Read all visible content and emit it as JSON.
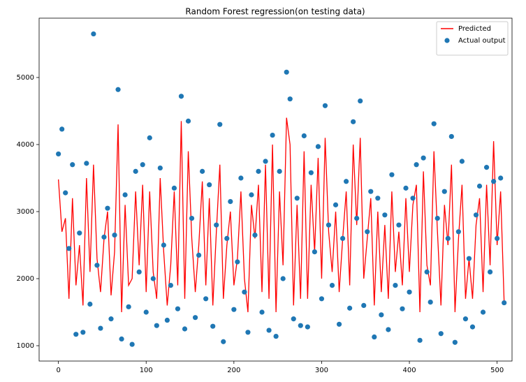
{
  "chart_data": {
    "type": "line",
    "title": "Random Forest regression(on testing data)",
    "x": [
      0,
      4,
      8,
      12,
      16,
      20,
      24,
      28,
      32,
      36,
      40,
      44,
      48,
      52,
      56,
      60,
      64,
      68,
      72,
      76,
      80,
      84,
      88,
      92,
      96,
      100,
      104,
      108,
      112,
      116,
      120,
      124,
      128,
      132,
      136,
      140,
      144,
      148,
      152,
      156,
      160,
      164,
      168,
      172,
      176,
      180,
      184,
      188,
      192,
      196,
      200,
      204,
      208,
      212,
      216,
      220,
      224,
      228,
      232,
      236,
      240,
      244,
      248,
      252,
      256,
      260,
      264,
      268,
      272,
      276,
      280,
      284,
      288,
      292,
      296,
      300,
      304,
      308,
      312,
      316,
      320,
      324,
      328,
      332,
      336,
      340,
      344,
      348,
      352,
      356,
      360,
      364,
      368,
      372,
      376,
      380,
      384,
      388,
      392,
      396,
      400,
      404,
      408,
      412,
      416,
      420,
      424,
      428,
      432,
      436,
      440,
      444,
      448,
      452,
      456,
      460,
      464,
      468,
      472,
      476,
      480,
      484,
      488,
      492,
      496,
      500,
      504,
      508
    ],
    "series": [
      {
        "name": "Predicted",
        "type": "line",
        "color": "#ff0000",
        "values": [
          3480,
          2700,
          2900,
          1700,
          3200,
          1900,
          2500,
          1600,
          3500,
          2100,
          3700,
          2300,
          1800,
          2600,
          3000,
          1750,
          2400,
          4300,
          1500,
          3100,
          1900,
          2000,
          3300,
          2200,
          3400,
          1800,
          3300,
          2100,
          1700,
          3500,
          2400,
          1600,
          2200,
          3300,
          1900,
          4350,
          1700,
          3900,
          2600,
          1800,
          2500,
          3450,
          1900,
          3200,
          1600,
          2700,
          3700,
          1700,
          2500,
          3000,
          1900,
          2300,
          3300,
          2000,
          1500,
          3100,
          2600,
          3400,
          1800,
          3700,
          1700,
          4000,
          1500,
          3300,
          2200,
          4400,
          4000,
          1600,
          3100,
          1700,
          3900,
          1700,
          3400,
          2400,
          3800,
          2000,
          4100,
          2700,
          2100,
          3000,
          1800,
          2600,
          3300,
          1900,
          4000,
          2800,
          4100,
          2000,
          2600,
          3200,
          1600,
          3000,
          1800,
          2800,
          1700,
          3300,
          2100,
          2700,
          1900,
          3200,
          2100,
          3100,
          3400,
          1500,
          3600,
          2200,
          1900,
          3900,
          2700,
          1600,
          3100,
          2500,
          3700,
          1500,
          2600,
          3400,
          1700,
          2300,
          1700,
          2800,
          3200,
          1800,
          3400,
          2200,
          4050,
          2500,
          3300,
          1650
        ]
      },
      {
        "name": "Actual output",
        "type": "scatter",
        "color": "#1f77b4",
        "values": [
          3860,
          4230,
          3280,
          2450,
          3700,
          1170,
          2680,
          1200,
          3720,
          1620,
          5650,
          2200,
          1260,
          2620,
          3050,
          1400,
          2650,
          4820,
          1100,
          3250,
          1580,
          1020,
          3600,
          2100,
          3700,
          1500,
          4100,
          2000,
          1300,
          3650,
          2500,
          1380,
          1900,
          3350,
          1550,
          4720,
          1250,
          4350,
          2900,
          1420,
          2350,
          3600,
          1700,
          3400,
          1290,
          2800,
          4300,
          1060,
          2600,
          3150,
          1540,
          2250,
          3500,
          1800,
          1200,
          3250,
          2650,
          3600,
          1500,
          3750,
          1230,
          4140,
          1140,
          3600,
          2000,
          5080,
          4680,
          1400,
          3200,
          1300,
          4130,
          1280,
          3580,
          2400,
          3970,
          1700,
          4580,
          2800,
          1900,
          3100,
          1320,
          2600,
          3450,
          1560,
          4340,
          2900,
          4650,
          1600,
          2700,
          3300,
          1130,
          3200,
          1460,
          2950,
          1240,
          3550,
          1900,
          2800,
          1550,
          3350,
          1800,
          3200,
          3700,
          1080,
          3800,
          2100,
          1650,
          4310,
          2900,
          1180,
          3300,
          2600,
          4120,
          1050,
          2700,
          3750,
          1400,
          2300,
          1280,
          2950,
          3380,
          1500,
          3660,
          2100,
          3450,
          2600,
          3500,
          1640
        ]
      }
    ],
    "xlim": [
      -22,
      517
    ],
    "ylim": [
      771,
      5885
    ],
    "xticks": [
      0,
      100,
      200,
      300,
      400,
      500
    ],
    "yticks": [
      1000,
      2000,
      3000,
      4000,
      5000
    ],
    "grid": false,
    "legend": "upper right"
  }
}
